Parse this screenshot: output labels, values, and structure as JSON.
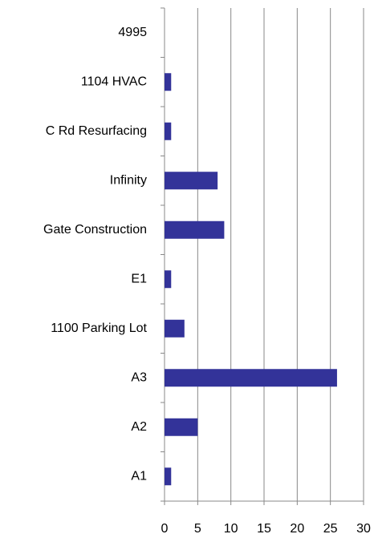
{
  "chart_data": {
    "type": "bar",
    "orientation": "horizontal",
    "categories": [
      "4995",
      "1104 HVAC",
      "C Rd Resurfacing",
      "Infinity",
      "Gate Construction",
      "E1",
      "1100 Parking Lot",
      "A3",
      "A2",
      "A1"
    ],
    "values": [
      0,
      1,
      1,
      8,
      9,
      1,
      3,
      26,
      5,
      1
    ],
    "color": "#333399",
    "xlim": [
      0,
      30
    ],
    "xticks": [
      0,
      5,
      10,
      15,
      20,
      25,
      30
    ],
    "grid": true
  }
}
